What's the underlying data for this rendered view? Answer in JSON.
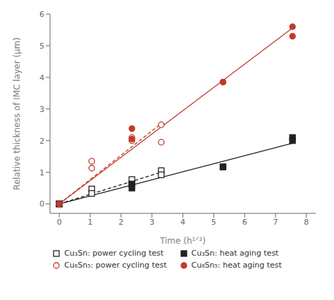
{
  "chart_data": {
    "type": "scatter",
    "xlabel": "Time (h¹ᐟ²)",
    "ylabel": "Relative thickness of IMC layer (μm)",
    "xlim": [
      -0.3,
      8.3
    ],
    "ylim": [
      -0.3,
      6.0
    ],
    "xticks": [
      0,
      1,
      2,
      3,
      4,
      5,
      6,
      7,
      8
    ],
    "yticks": [
      0,
      1,
      2,
      3,
      4,
      5,
      6
    ],
    "grid": false,
    "legend": "bottom",
    "series": [
      {
        "name": "Cu₃Sn: power cycling test",
        "color": "#222222",
        "marker": "square_open",
        "line_style": "dashed",
        "x": [
          0.0,
          1.05,
          2.35,
          3.3,
          0.0,
          1.05,
          2.35,
          3.3
        ],
        "values": [
          0.0,
          0.47,
          0.77,
          1.05,
          0.0,
          0.33,
          0.63,
          0.92
        ],
        "fit": {
          "x": [
            0,
            3.3
          ],
          "values": [
            0,
            1.0015
          ]
        }
      },
      {
        "name": "Cu₃Sn: heat aging test",
        "color": "#222222",
        "marker": "square",
        "line_style": "solid",
        "x": [
          0.0,
          2.35,
          5.3,
          7.55,
          0.0,
          2.35,
          5.3,
          7.55
        ],
        "values": [
          0.0,
          0.62,
          1.17,
          2.1,
          0.0,
          0.5,
          1.17,
          2.0
        ],
        "fit": {
          "x": [
            0,
            7.55
          ],
          "values": [
            0,
            1.9159
          ]
        }
      },
      {
        "name": "Cu₆Sn₅: power cycling test",
        "color": "#c0392b",
        "marker": "circle_open",
        "line_style": "dashed",
        "x": [
          0.0,
          1.05,
          2.35,
          3.3,
          0.0,
          1.05,
          2.35,
          3.3
        ],
        "values": [
          0.0,
          1.35,
          2.1,
          2.5,
          0.0,
          1.13,
          2.0,
          1.95
        ],
        "fit": {
          "x": [
            0,
            3.3
          ],
          "values": [
            0,
            2.5364
          ]
        }
      },
      {
        "name": "Cu₆Sn₅: heat aging test",
        "color": "#c0392b",
        "marker": "circle",
        "line_style": "solid",
        "x": [
          0.0,
          2.35,
          5.3,
          7.55,
          0.0,
          2.35,
          5.3,
          7.55
        ],
        "values": [
          0.0,
          2.38,
          3.85,
          5.6,
          0.0,
          2.05,
          3.85,
          5.3
        ],
        "fit": {
          "x": [
            0,
            7.55
          ],
          "values": [
            0,
            5.5622
          ]
        }
      }
    ]
  }
}
